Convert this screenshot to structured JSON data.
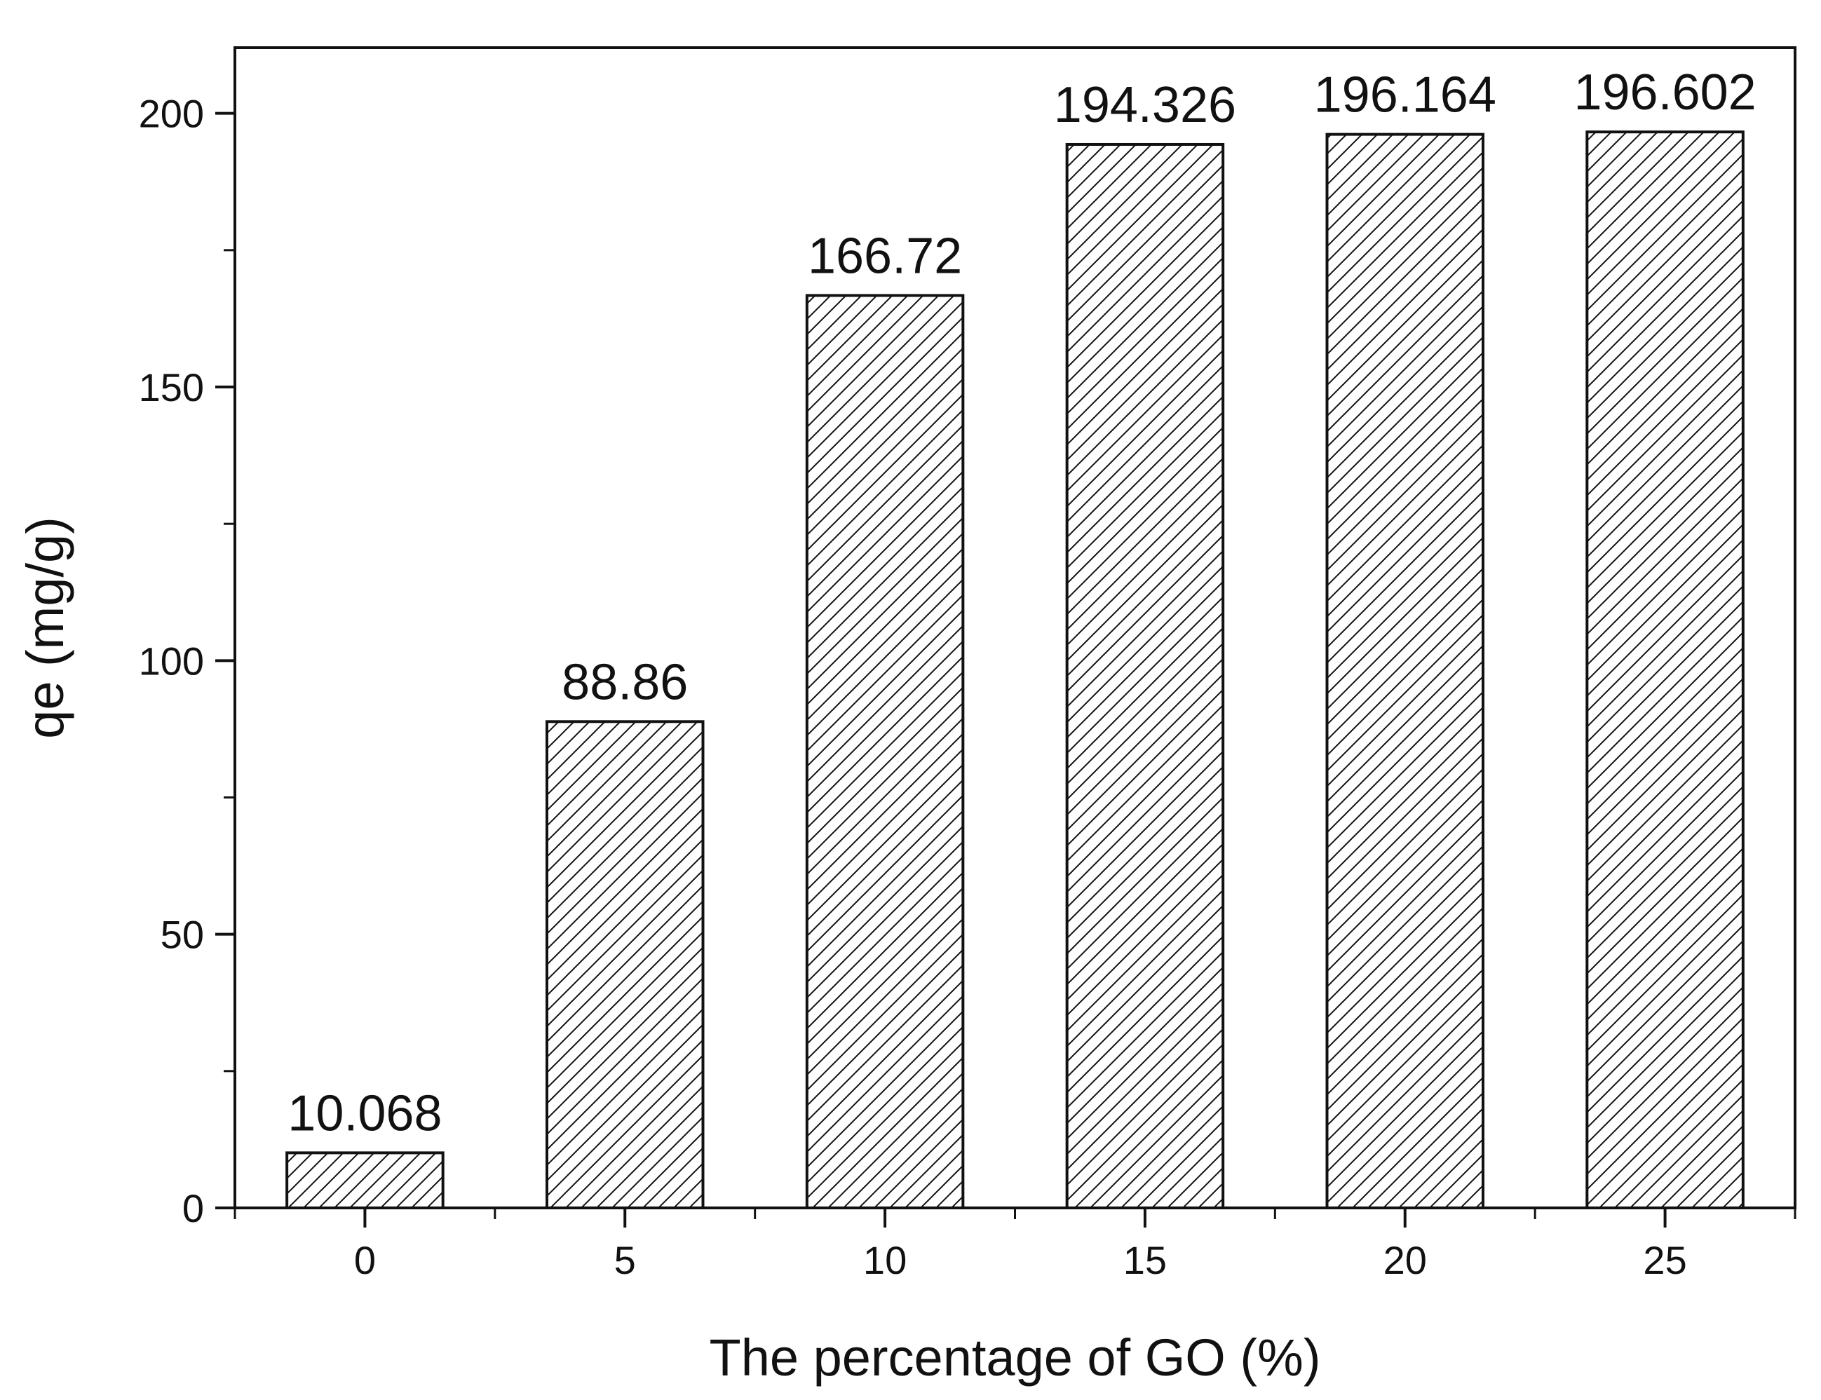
{
  "chart_data": {
    "type": "bar",
    "categories": [
      "0",
      "5",
      "10",
      "15",
      "20",
      "25"
    ],
    "series": [
      {
        "values": [
          10.068,
          88.86,
          166.72,
          194.326,
          196.164,
          196.602
        ]
      }
    ],
    "data_labels": [
      "10.068",
      "88.86",
      "166.72",
      "194.326",
      "196.164",
      "196.602"
    ],
    "title": "",
    "xlabel": "The percentage of GO (%)",
    "ylabel": "qe (mg/g)",
    "ylim": [
      0,
      212
    ],
    "y_major_ticks": [
      0,
      50,
      100,
      150,
      200
    ],
    "y_minor_ticks": [
      25,
      75,
      125,
      175
    ],
    "grid": false,
    "legend": "none",
    "bar_fill": "diagonal-hatch",
    "colors": {
      "bar_fill": "#ffffff",
      "bar_edge": "#111111",
      "hatch": "#111111",
      "axes": "#111111"
    }
  }
}
